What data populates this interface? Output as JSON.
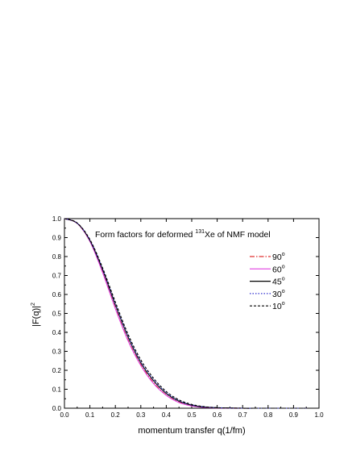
{
  "chart_data": {
    "type": "line",
    "title": {
      "prefix": "Form factors for  deformed ",
      "superscript": "131",
      "suffix": "Xe of NMF model"
    },
    "xlabel": "momentum transfer q(1/fm)",
    "ylabel": {
      "base": "|F(q)|",
      "superscript": "2"
    },
    "xlim": [
      0.0,
      1.0
    ],
    "ylim": [
      0.0,
      1.0
    ],
    "xticks": [
      "0.0",
      "0.1",
      "0.2",
      "0.3",
      "0.4",
      "0.5",
      "0.6",
      "0.7",
      "0.8",
      "0.9",
      "1.0"
    ],
    "yticks": [
      "0.0",
      "0.1",
      "0.2",
      "0.3",
      "0.4",
      "0.5",
      "0.6",
      "0.7",
      "0.8",
      "0.9",
      "1.0"
    ],
    "grid": false,
    "legend_position": "right",
    "x": [
      0.0,
      0.05,
      0.1,
      0.15,
      0.2,
      0.25,
      0.3,
      0.35,
      0.4,
      0.45,
      0.5,
      0.55,
      0.6,
      0.65,
      0.7,
      0.75,
      0.8,
      0.85,
      0.9,
      0.95
    ],
    "series": [
      {
        "name": "90",
        "name_superscript": "o",
        "color": "#e03030",
        "dash": "6,2,1.5,2",
        "values": [
          1.0,
          0.975,
          0.88,
          0.72,
          0.53,
          0.36,
          0.23,
          0.135,
          0.07,
          0.032,
          0.013,
          0.005,
          0.002,
          0.001,
          0.0,
          0.0,
          0.0,
          0.0,
          0.0,
          0.0
        ]
      },
      {
        "name": "60",
        "name_superscript": "o",
        "color": "#e040e0",
        "dash": "",
        "values": [
          1.0,
          0.975,
          0.88,
          0.715,
          0.525,
          0.355,
          0.225,
          0.13,
          0.068,
          0.03,
          0.012,
          0.004,
          0.001,
          0.0,
          0.0,
          0.0,
          0.0,
          0.0,
          0.0,
          0.0
        ]
      },
      {
        "name": "45",
        "name_superscript": "o",
        "color": "#000000",
        "dash": "",
        "values": [
          1.0,
          0.976,
          0.885,
          0.73,
          0.545,
          0.375,
          0.24,
          0.145,
          0.078,
          0.037,
          0.016,
          0.006,
          0.002,
          0.001,
          0.0,
          0.0,
          0.0,
          0.0,
          0.0,
          0.0
        ]
      },
      {
        "name": "30",
        "name_superscript": "o",
        "color": "#3030d0",
        "dash": "1.5,2",
        "values": [
          1.0,
          0.976,
          0.887,
          0.735,
          0.55,
          0.38,
          0.245,
          0.15,
          0.082,
          0.04,
          0.018,
          0.007,
          0.003,
          0.001,
          0.0,
          0.0,
          0.0,
          0.0,
          0.0,
          0.0
        ]
      },
      {
        "name": "10",
        "name_superscript": "o",
        "color": "#000000",
        "dash": "3,2",
        "values": [
          1.0,
          0.977,
          0.89,
          0.74,
          0.56,
          0.39,
          0.255,
          0.158,
          0.088,
          0.044,
          0.02,
          0.008,
          0.003,
          0.001,
          0.0,
          0.0,
          0.0,
          0.0,
          0.0,
          0.0
        ]
      }
    ]
  }
}
